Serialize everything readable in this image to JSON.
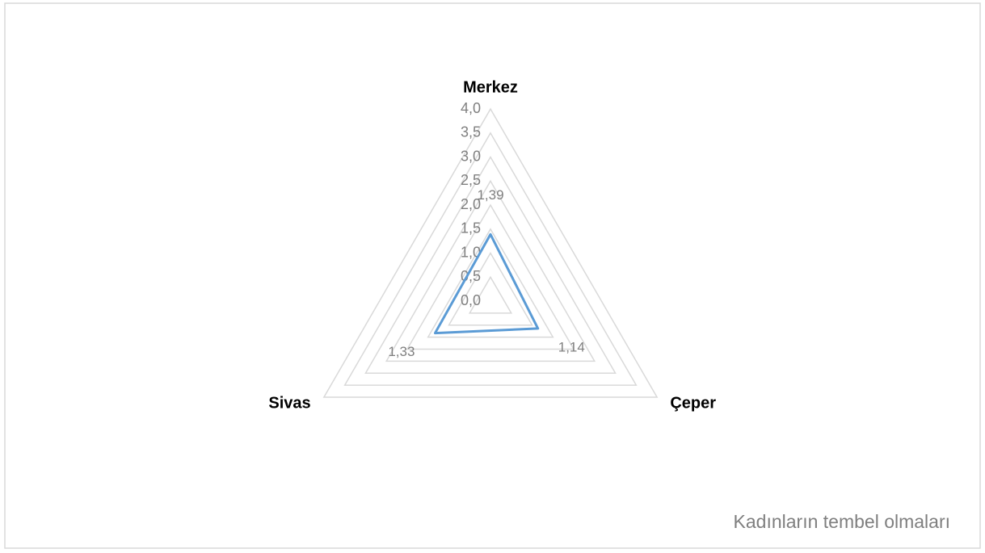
{
  "chart_data": {
    "type": "radar",
    "categories": [
      "Merkez",
      "Çeper",
      "Sivas"
    ],
    "series": [
      {
        "name": "Kadınların tembel olmaları",
        "color": "#5b9bd5",
        "values": [
          1.39,
          1.14,
          1.33
        ],
        "value_labels": [
          "1,39",
          "1,14",
          "1,33"
        ]
      }
    ],
    "ylim": [
      0,
      4
    ],
    "yticks": [
      {
        "value": 0,
        "label": "0,0"
      },
      {
        "value": 0.5,
        "label": "0,5"
      },
      {
        "value": 1,
        "label": "1,0"
      },
      {
        "value": 1.5,
        "label": "1,5"
      },
      {
        "value": 2,
        "label": "2,0"
      },
      {
        "value": 2.5,
        "label": "2,5"
      },
      {
        "value": 3,
        "label": "3,0"
      },
      {
        "value": 3.5,
        "label": "3,5"
      },
      {
        "value": 4,
        "label": "4,0"
      }
    ],
    "grid": true,
    "legend": "bottom-right"
  }
}
